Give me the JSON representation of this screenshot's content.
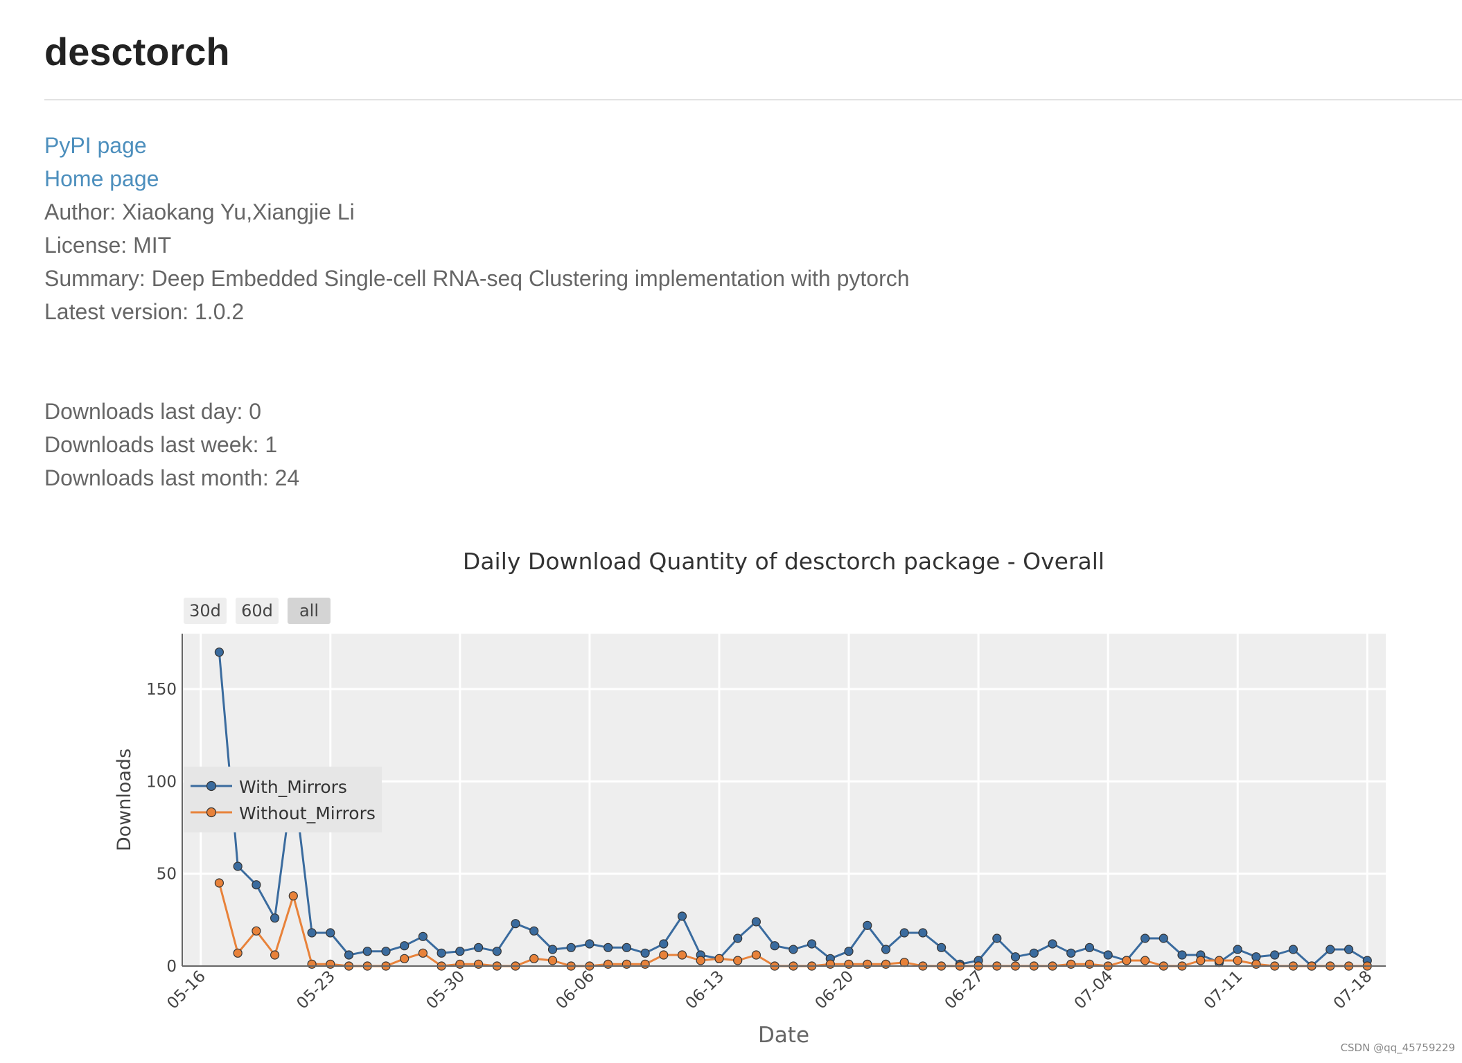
{
  "header": {
    "title": "desctorch"
  },
  "links": {
    "pypi": "PyPI page",
    "home": "Home page"
  },
  "meta": {
    "author": "Author: Xiaokang Yu,Xiangjie Li",
    "license": "License: MIT",
    "summary": "Summary: Deep Embedded Single-cell RNA-seq Clustering implementation with pytorch",
    "version": "Latest version: 1.0.2"
  },
  "stats": {
    "last_day": "Downloads last day: 0",
    "last_week": "Downloads last week: 1",
    "last_month": "Downloads last month: 24"
  },
  "range_buttons": [
    "30d",
    "60d",
    "all"
  ],
  "range_selected": "all",
  "colors": {
    "link": "#4d8fbd",
    "plot_bg": "#eeeeee",
    "with_mirrors": "#3a6b9e",
    "without_mirrors": "#e8823a"
  },
  "watermark": "CSDN @qq_45759229",
  "chart_data": {
    "type": "line",
    "title": "Daily Download Quantity of desctorch package - Overall",
    "xlabel": "Date",
    "ylabel": "Downloads",
    "x_start": "05-17",
    "x_ticks": [
      "05-16",
      "05-23",
      "05-30",
      "06-06",
      "06-13",
      "06-20",
      "06-27",
      "07-04",
      "07-11",
      "07-18"
    ],
    "x_range": [
      "05-15",
      "07-19"
    ],
    "y_ticks": [
      0,
      50,
      100,
      150
    ],
    "ylim": [
      0,
      180
    ],
    "grid": true,
    "legend_position": "left-middle",
    "series": [
      {
        "name": "With_Mirrors",
        "values": [
          170,
          54,
          44,
          26,
          102,
          18,
          18,
          6,
          8,
          8,
          11,
          16,
          7,
          8,
          10,
          8,
          23,
          19,
          9,
          10,
          12,
          10,
          10,
          7,
          12,
          27,
          6,
          4,
          15,
          24,
          11,
          9,
          12,
          4,
          8,
          22,
          9,
          18,
          18,
          10,
          1,
          3,
          15,
          5,
          7,
          12,
          7,
          10,
          6,
          3,
          15,
          15,
          6,
          6,
          2,
          9,
          5,
          6,
          9,
          0,
          9,
          9,
          3
        ]
      },
      {
        "name": "Without_Mirrors",
        "values": [
          45,
          7,
          19,
          6,
          38,
          1,
          1,
          0,
          0,
          0,
          4,
          7,
          0,
          1,
          1,
          0,
          0,
          4,
          3,
          0,
          0,
          1,
          1,
          1,
          6,
          6,
          3,
          4,
          3,
          6,
          0,
          0,
          0,
          1,
          1,
          1,
          1,
          2,
          0,
          0,
          0,
          0,
          0,
          0,
          0,
          0,
          1,
          1,
          0,
          3,
          3,
          0,
          0,
          3,
          3,
          3,
          1,
          0,
          0,
          0,
          0,
          0,
          0
        ]
      }
    ]
  }
}
